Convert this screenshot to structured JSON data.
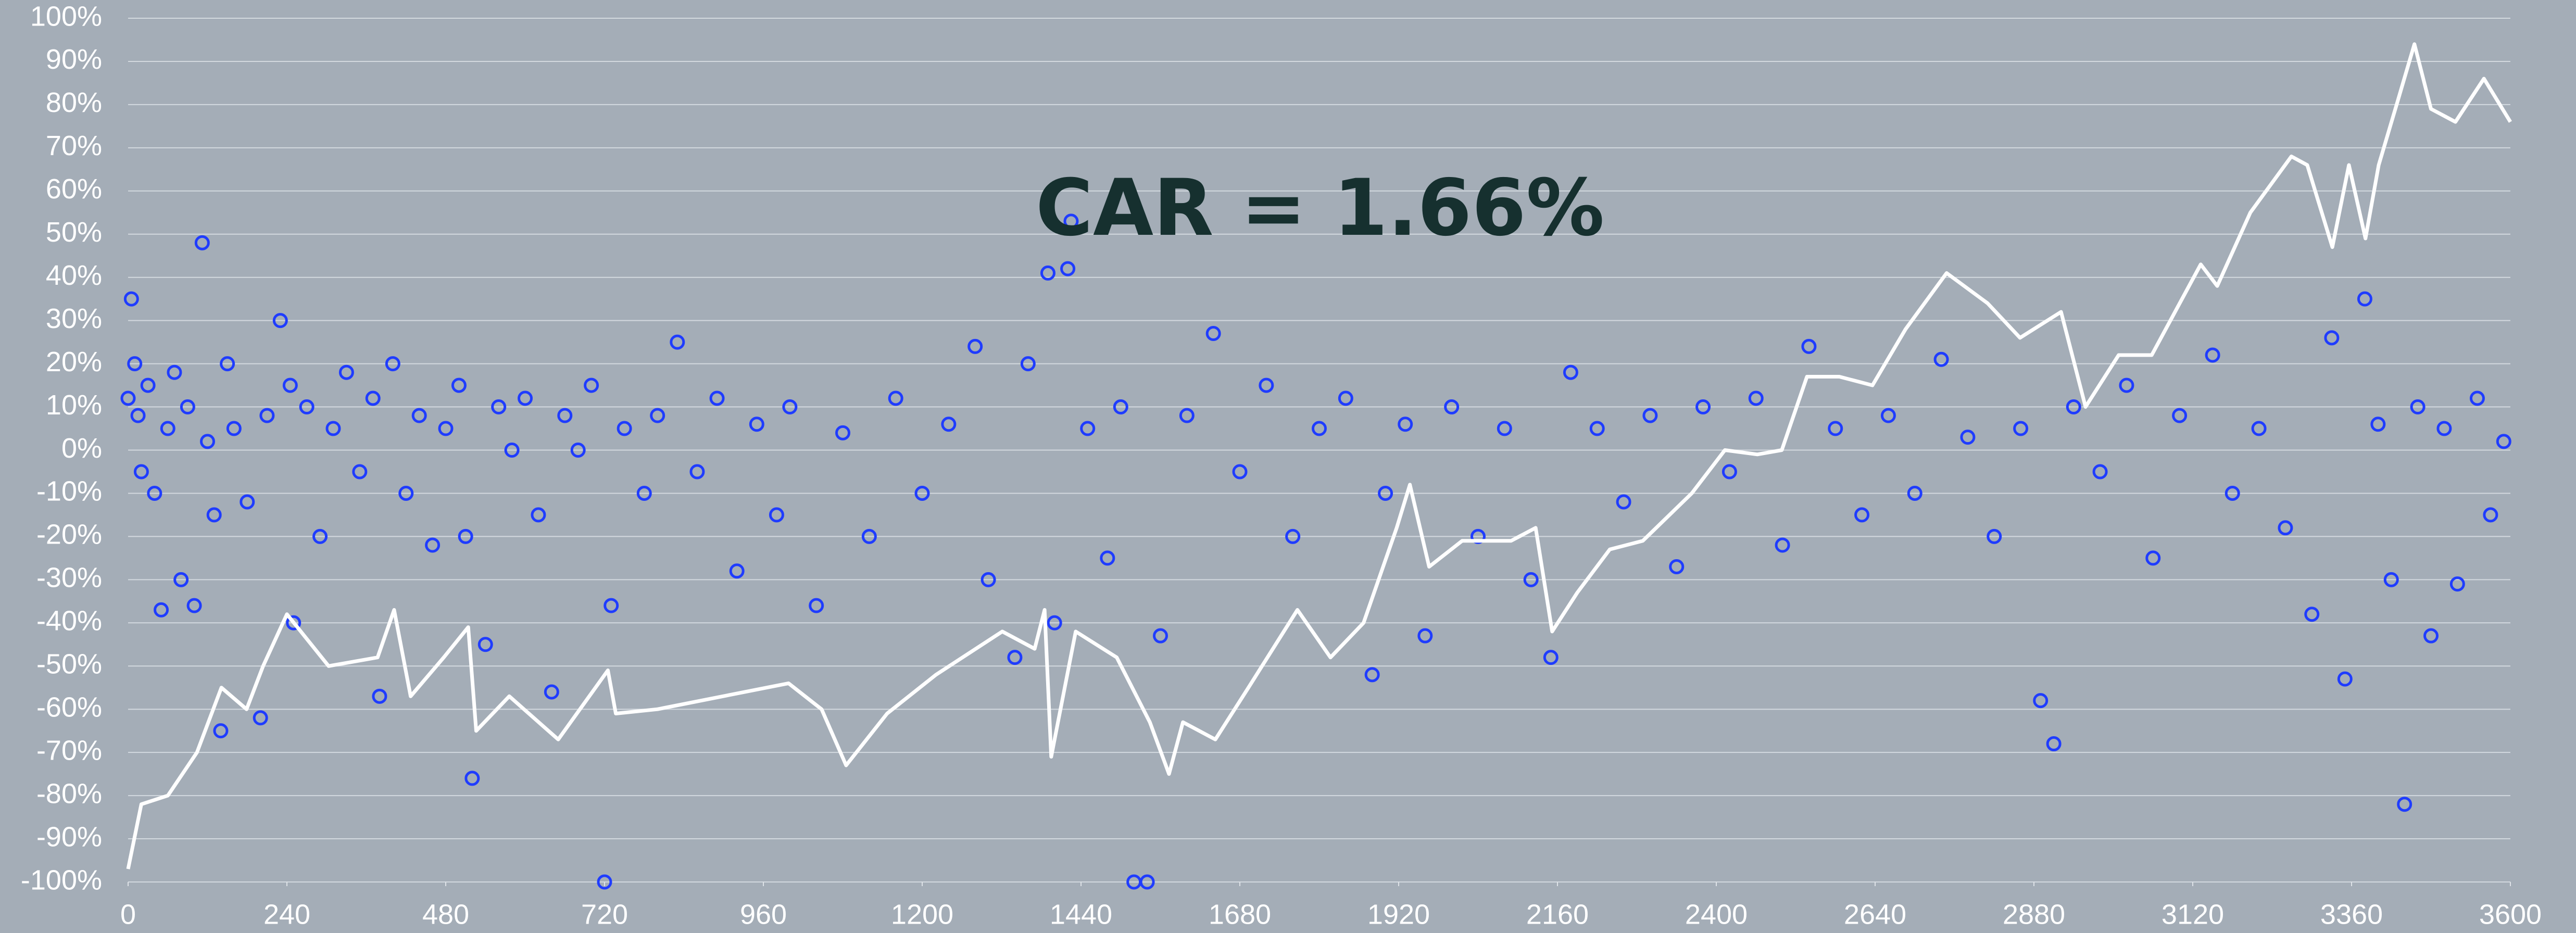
{
  "chart_data": {
    "type": "scatter",
    "annotation": "CAR = 1.66%",
    "xlim": [
      0,
      3600
    ],
    "xticks": [
      0,
      240,
      480,
      720,
      960,
      1200,
      1440,
      1680,
      1920,
      2160,
      2400,
      2640,
      2880,
      3120,
      3360,
      3600
    ],
    "ylim": [
      -100,
      100
    ],
    "yticks": [
      {
        "value": -100,
        "label": "-100%"
      },
      {
        "value": -90,
        "label": "-90%"
      },
      {
        "value": -80,
        "label": "-80%"
      },
      {
        "value": -70,
        "label": "-70%"
      },
      {
        "value": -60,
        "label": "-60%"
      },
      {
        "value": -50,
        "label": "-50%"
      },
      {
        "value": -40,
        "label": "-40%"
      },
      {
        "value": -30,
        "label": "-30%"
      },
      {
        "value": -20,
        "label": "-20%"
      },
      {
        "value": -10,
        "label": "-10%"
      },
      {
        "value": 0,
        "label": "0%"
      },
      {
        "value": 10,
        "label": "10%"
      },
      {
        "value": 20,
        "label": "20%"
      },
      {
        "value": 30,
        "label": "30%"
      },
      {
        "value": 40,
        "label": "40%"
      },
      {
        "value": 50,
        "label": "50%"
      },
      {
        "value": 60,
        "label": "60%"
      },
      {
        "value": 70,
        "label": "70%"
      },
      {
        "value": 80,
        "label": "80%"
      },
      {
        "value": 90,
        "label": "90%"
      },
      {
        "value": 100,
        "label": "100%"
      }
    ],
    "grid": true,
    "points": {
      "color": "#1f3cff",
      "x": [
        0,
        5,
        10,
        15,
        20,
        30,
        40,
        50,
        60,
        70,
        80,
        90,
        100,
        112,
        120,
        130,
        140,
        150,
        160,
        180,
        200,
        210,
        230,
        245,
        250,
        270,
        290,
        310,
        330,
        350,
        370,
        380,
        400,
        420,
        440,
        460,
        480,
        500,
        510,
        520,
        540,
        560,
        580,
        600,
        620,
        640,
        660,
        680,
        700,
        720,
        730,
        750,
        780,
        800,
        830,
        860,
        890,
        920,
        950,
        980,
        1000,
        1040,
        1080,
        1120,
        1160,
        1200,
        1240,
        1280,
        1300,
        1340,
        1360,
        1390,
        1400,
        1420,
        1425,
        1450,
        1480,
        1500,
        1520,
        1540,
        1560,
        1600,
        1640,
        1680,
        1720,
        1760,
        1800,
        1840,
        1880,
        1900,
        1930,
        1960,
        2000,
        2040,
        2080,
        2120,
        2150,
        2180,
        2220,
        2260,
        2300,
        2340,
        2380,
        2420,
        2460,
        2500,
        2540,
        2580,
        2620,
        2660,
        2700,
        2740,
        2780,
        2820,
        2860,
        2890,
        2910,
        2940,
        2980,
        3020,
        3060,
        3100,
        3150,
        3180,
        3220,
        3260,
        3300,
        3330,
        3350,
        3380,
        3400,
        3420,
        3440,
        3460,
        3480,
        3500,
        3520,
        3550,
        3570,
        3590
      ],
      "y": [
        12,
        35,
        20,
        8,
        -5,
        15,
        -10,
        -37,
        5,
        18,
        -30,
        10,
        -36,
        48,
        2,
        -15,
        -65,
        20,
        5,
        -12,
        -62,
        8,
        30,
        15,
        -40,
        10,
        -20,
        5,
        18,
        -5,
        12,
        -57,
        20,
        -10,
        8,
        -22,
        5,
        15,
        -20,
        -76,
        -45,
        10,
        0,
        12,
        -15,
        -56,
        8,
        0,
        15,
        -100,
        -36,
        5,
        -10,
        8,
        25,
        -5,
        12,
        -28,
        6,
        -15,
        10,
        -36,
        4,
        -20,
        12,
        -10,
        6,
        24,
        -30,
        -48,
        20,
        41,
        -40,
        42,
        53,
        5,
        -25,
        10,
        -100,
        -100,
        -43,
        8,
        27,
        -5,
        15,
        -20,
        5,
        12,
        -52,
        -10,
        6,
        -43,
        10,
        -20,
        5,
        -30,
        -48,
        18,
        5,
        -12,
        8,
        -27,
        10,
        -5,
        12,
        -22,
        24,
        5,
        -15,
        8,
        -10,
        21,
        3,
        -20,
        5,
        -58,
        -68,
        10,
        -5,
        15,
        -25,
        8,
        22,
        -10,
        5,
        -18,
        -38,
        26,
        -53,
        35,
        6,
        -30,
        -82,
        10,
        -43,
        5,
        -31,
        12,
        -15,
        2
      ]
    },
    "line": {
      "color": "#ffffff",
      "x": [
        0,
        20,
        60,
        104,
        141,
        179,
        204,
        240,
        303,
        377,
        402,
        427,
        477,
        514,
        526,
        576,
        650,
        725,
        737,
        800,
        899,
        998,
        1048,
        1085,
        1147,
        1221,
        1321,
        1370,
        1385,
        1395,
        1432,
        1494,
        1544,
        1573,
        1594,
        1643,
        1693,
        1767,
        1817,
        1867,
        1917,
        1937,
        1966,
        2016,
        2090,
        2127,
        2152,
        2190,
        2239,
        2289,
        2363,
        2413,
        2462,
        2499,
        2537,
        2586,
        2636,
        2686,
        2748,
        2810,
        2859,
        2921,
        2958,
        3008,
        3058,
        3132,
        3157,
        3207,
        3269,
        3293,
        3331,
        3356,
        3381,
        3401,
        3430,
        3455,
        3480,
        3517,
        3560,
        3600
      ],
      "y": [
        -97,
        -82,
        -80,
        -70,
        -55,
        -60,
        -50,
        -38,
        -50,
        -48,
        -37,
        -57,
        -48,
        -41,
        -65,
        -57,
        -67,
        -51,
        -61,
        -60,
        -57,
        -54,
        -60,
        -73,
        -61,
        -52,
        -42,
        -46,
        -37,
        -71,
        -42,
        -48,
        -63,
        -75,
        -63,
        -67,
        -55,
        -37,
        -48,
        -40,
        -18,
        -8,
        -27,
        -21,
        -21,
        -18,
        -42,
        -33,
        -23,
        -21,
        -10,
        0,
        -1,
        0,
        17,
        17,
        15,
        28,
        41,
        34,
        26,
        32,
        10,
        22,
        22,
        43,
        38,
        55,
        68,
        66,
        47,
        66,
        49,
        66,
        81,
        94,
        79,
        76,
        86,
        76
      ]
    }
  }
}
